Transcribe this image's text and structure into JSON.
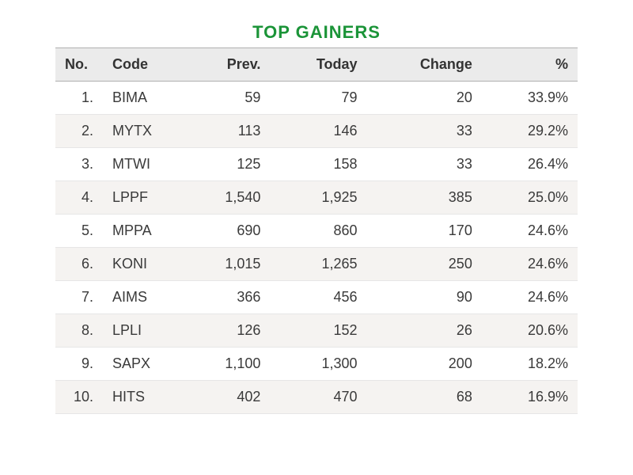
{
  "title": "TOP GAINERS",
  "title_color": "#1b9438",
  "header_bg": "#ebebeb",
  "row_odd_bg": "#ffffff",
  "row_even_bg": "#f5f3f1",
  "border_color": "#b0b0b0",
  "text_color": "#3a3a3a",
  "font_size_title": 22,
  "font_size_body": 18,
  "columns": [
    {
      "key": "no",
      "label": "No.",
      "align": "left"
    },
    {
      "key": "code",
      "label": "Code",
      "align": "left"
    },
    {
      "key": "prev",
      "label": "Prev.",
      "align": "right"
    },
    {
      "key": "today",
      "label": "Today",
      "align": "right"
    },
    {
      "key": "change",
      "label": "Change",
      "align": "right"
    },
    {
      "key": "pct",
      "label": "%",
      "align": "right"
    }
  ],
  "rows": [
    {
      "no": "1.",
      "code": "BIMA",
      "prev": "59",
      "today": "79",
      "change": "20",
      "pct": "33.9%"
    },
    {
      "no": "2.",
      "code": "MYTX",
      "prev": "113",
      "today": "146",
      "change": "33",
      "pct": "29.2%"
    },
    {
      "no": "3.",
      "code": "MTWI",
      "prev": "125",
      "today": "158",
      "change": "33",
      "pct": "26.4%"
    },
    {
      "no": "4.",
      "code": "LPPF",
      "prev": "1,540",
      "today": "1,925",
      "change": "385",
      "pct": "25.0%"
    },
    {
      "no": "5.",
      "code": "MPPA",
      "prev": "690",
      "today": "860",
      "change": "170",
      "pct": "24.6%"
    },
    {
      "no": "6.",
      "code": "KONI",
      "prev": "1,015",
      "today": "1,265",
      "change": "250",
      "pct": "24.6%"
    },
    {
      "no": "7.",
      "code": "AIMS",
      "prev": "366",
      "today": "456",
      "change": "90",
      "pct": "24.6%"
    },
    {
      "no": "8.",
      "code": "LPLI",
      "prev": "126",
      "today": "152",
      "change": "26",
      "pct": "20.6%"
    },
    {
      "no": "9.",
      "code": "SAPX",
      "prev": "1,100",
      "today": "1,300",
      "change": "200",
      "pct": "18.2%"
    },
    {
      "no": "10.",
      "code": "HITS",
      "prev": "402",
      "today": "470",
      "change": "68",
      "pct": "16.9%"
    }
  ]
}
